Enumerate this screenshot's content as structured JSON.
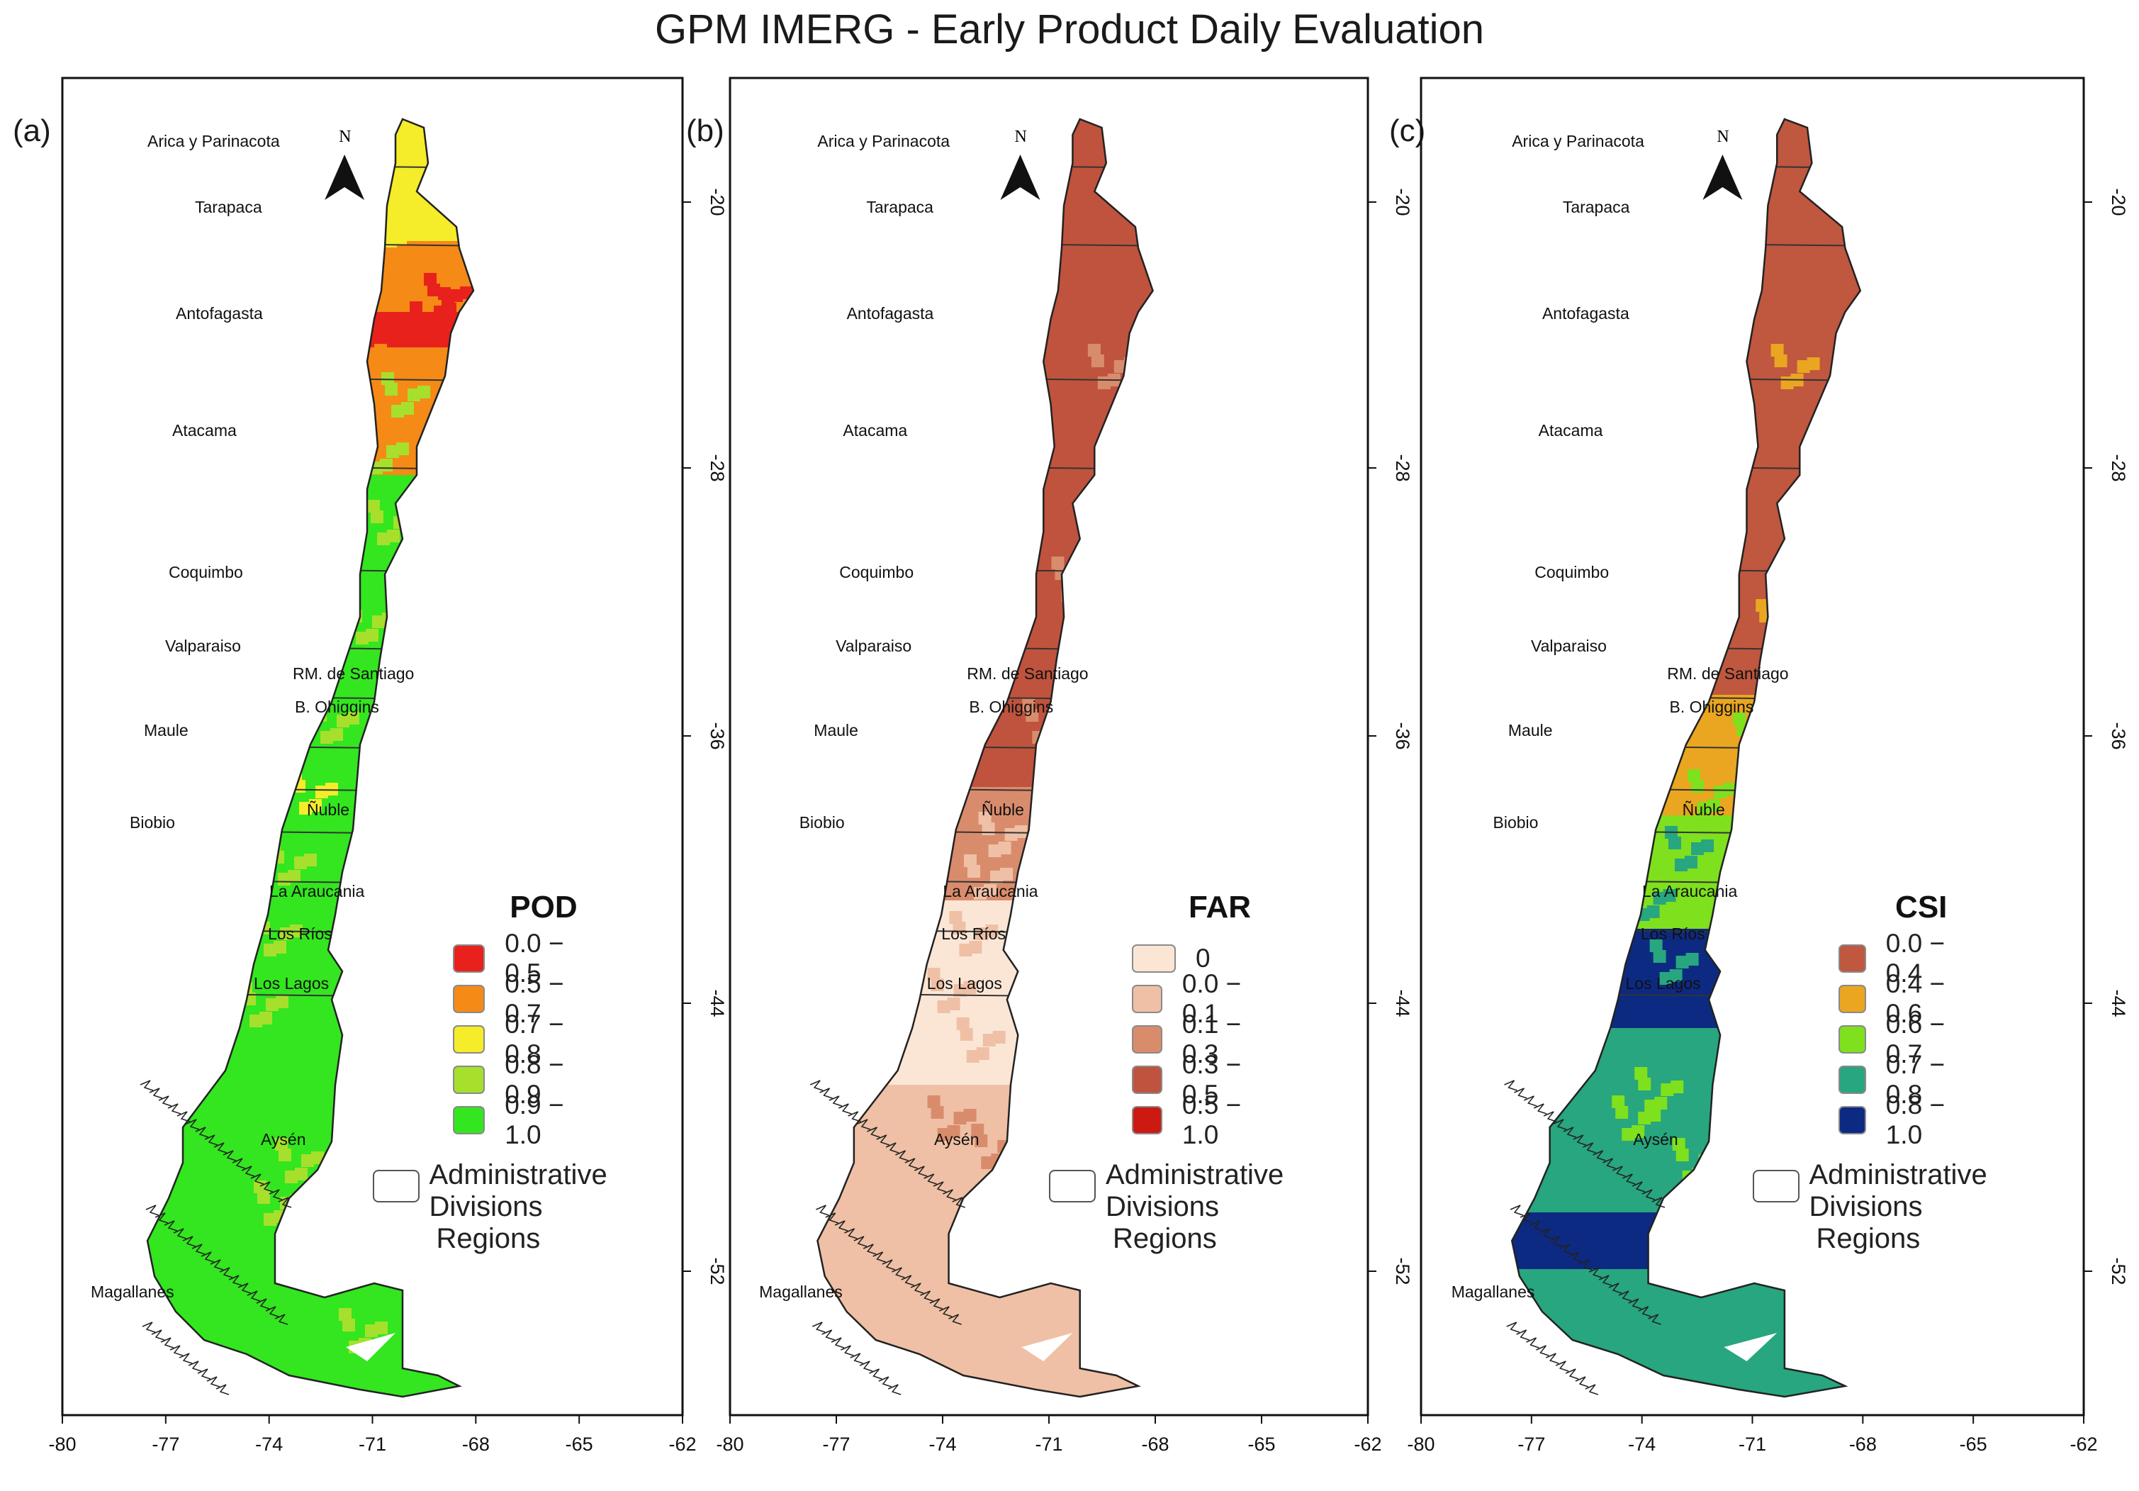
{
  "title": "GPM IMERG - Early Product Daily Evaluation",
  "panels": [
    {
      "label": "(a)",
      "metric": "POD",
      "legend": [
        {
          "range": "0.0 − 0.5",
          "color": "#e8211c"
        },
        {
          "range": "0.5 − 0.7",
          "color": "#f58a16"
        },
        {
          "range": "0.7 − 0.8",
          "color": "#f5ec2a"
        },
        {
          "range": "0.8 − 0.9",
          "color": "#a6e02c"
        },
        {
          "range": "0.9 − 1.0",
          "color": "#33e61f"
        }
      ]
    },
    {
      "label": "(b)",
      "metric": "FAR",
      "legend": [
        {
          "range": "0",
          "color": "#fbe6d6"
        },
        {
          "range": "0.0 − 0.1",
          "color": "#efc0a5"
        },
        {
          "range": "0.1 − 0.3",
          "color": "#d98c6c"
        },
        {
          "range": "0.3 − 0.5",
          "color": "#c0533d"
        },
        {
          "range": "0.5 − 1.0",
          "color": "#cc1a12"
        }
      ]
    },
    {
      "label": "(c)",
      "metric": "CSI",
      "legend": [
        {
          "range": "0.0 − 0.4",
          "color": "#c0573f"
        },
        {
          "range": "0.4 − 0.6",
          "color": "#eaa620"
        },
        {
          "range": "0.6 − 0.7",
          "color": "#7fe01d"
        },
        {
          "range": "0.7 − 0.8",
          "color": "#27a67f"
        },
        {
          "range": "0.8 − 1.0",
          "color": "#0d2a82"
        }
      ]
    }
  ],
  "admin_legend": {
    "line1": "Administrative Divisions",
    "line2": "Regions"
  },
  "north_label": "N",
  "x_ticks": [
    "-80",
    "-77",
    "-74",
    "-71",
    "-68",
    "-65",
    "-62"
  ],
  "y_ticks": [
    "-20",
    "-28",
    "-36",
    "-44",
    "-52"
  ],
  "regions": [
    "Arica y Parinacota",
    "Tarapaca",
    "Antofagasta",
    "Atacama",
    "Coquimbo",
    "Valparaiso",
    "RM. de Santiago",
    "B. Ohiggins",
    "Maule",
    "Ñuble",
    "Biobio",
    "La Araucania",
    "Los Ríos",
    "Los Lagos",
    "Aysén",
    "Magallanes"
  ]
}
